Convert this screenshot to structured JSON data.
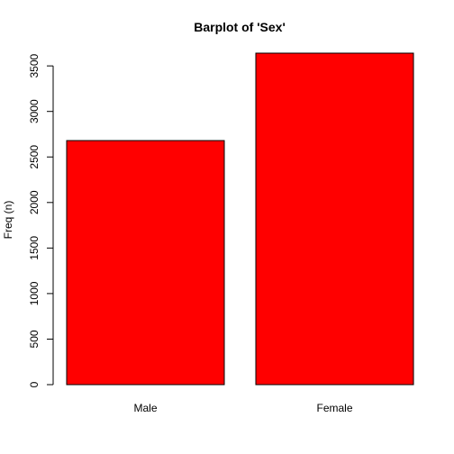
{
  "chart_data": {
    "type": "bar",
    "title": "Barplot of 'Sex'",
    "xlabel": "",
    "ylabel": "Freq (n)",
    "categories": [
      "Male",
      "Female"
    ],
    "values": [
      2680,
      3640
    ],
    "ylim": [
      0,
      3640
    ],
    "yticks": [
      0,
      500,
      1000,
      1500,
      2000,
      2500,
      3000,
      3500
    ],
    "ytick_labels": [
      "0",
      "500",
      "1000",
      "1500",
      "2000",
      "2500",
      "3000",
      "3500"
    ],
    "bar_color": "#ff0000",
    "grid": false,
    "legend": "none"
  }
}
